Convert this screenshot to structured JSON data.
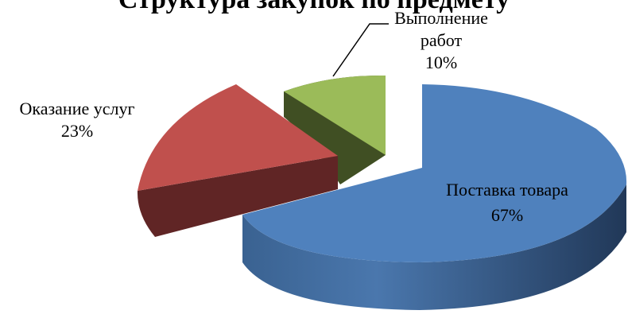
{
  "chart_data": {
    "type": "pie",
    "title": "Структура закупок по предмету",
    "slices": [
      {
        "name": "Поставка товара",
        "value": 67,
        "label": "67%",
        "color": "#4F81BD"
      },
      {
        "name": "Оказание услуг",
        "value": 23,
        "label": "23%",
        "color": "#C0504D"
      },
      {
        "name": "Выполнение работ",
        "value": 10,
        "label": "10%",
        "color": "#9BBB59"
      }
    ],
    "exploded": true,
    "three_d": true,
    "legend": "none"
  }
}
